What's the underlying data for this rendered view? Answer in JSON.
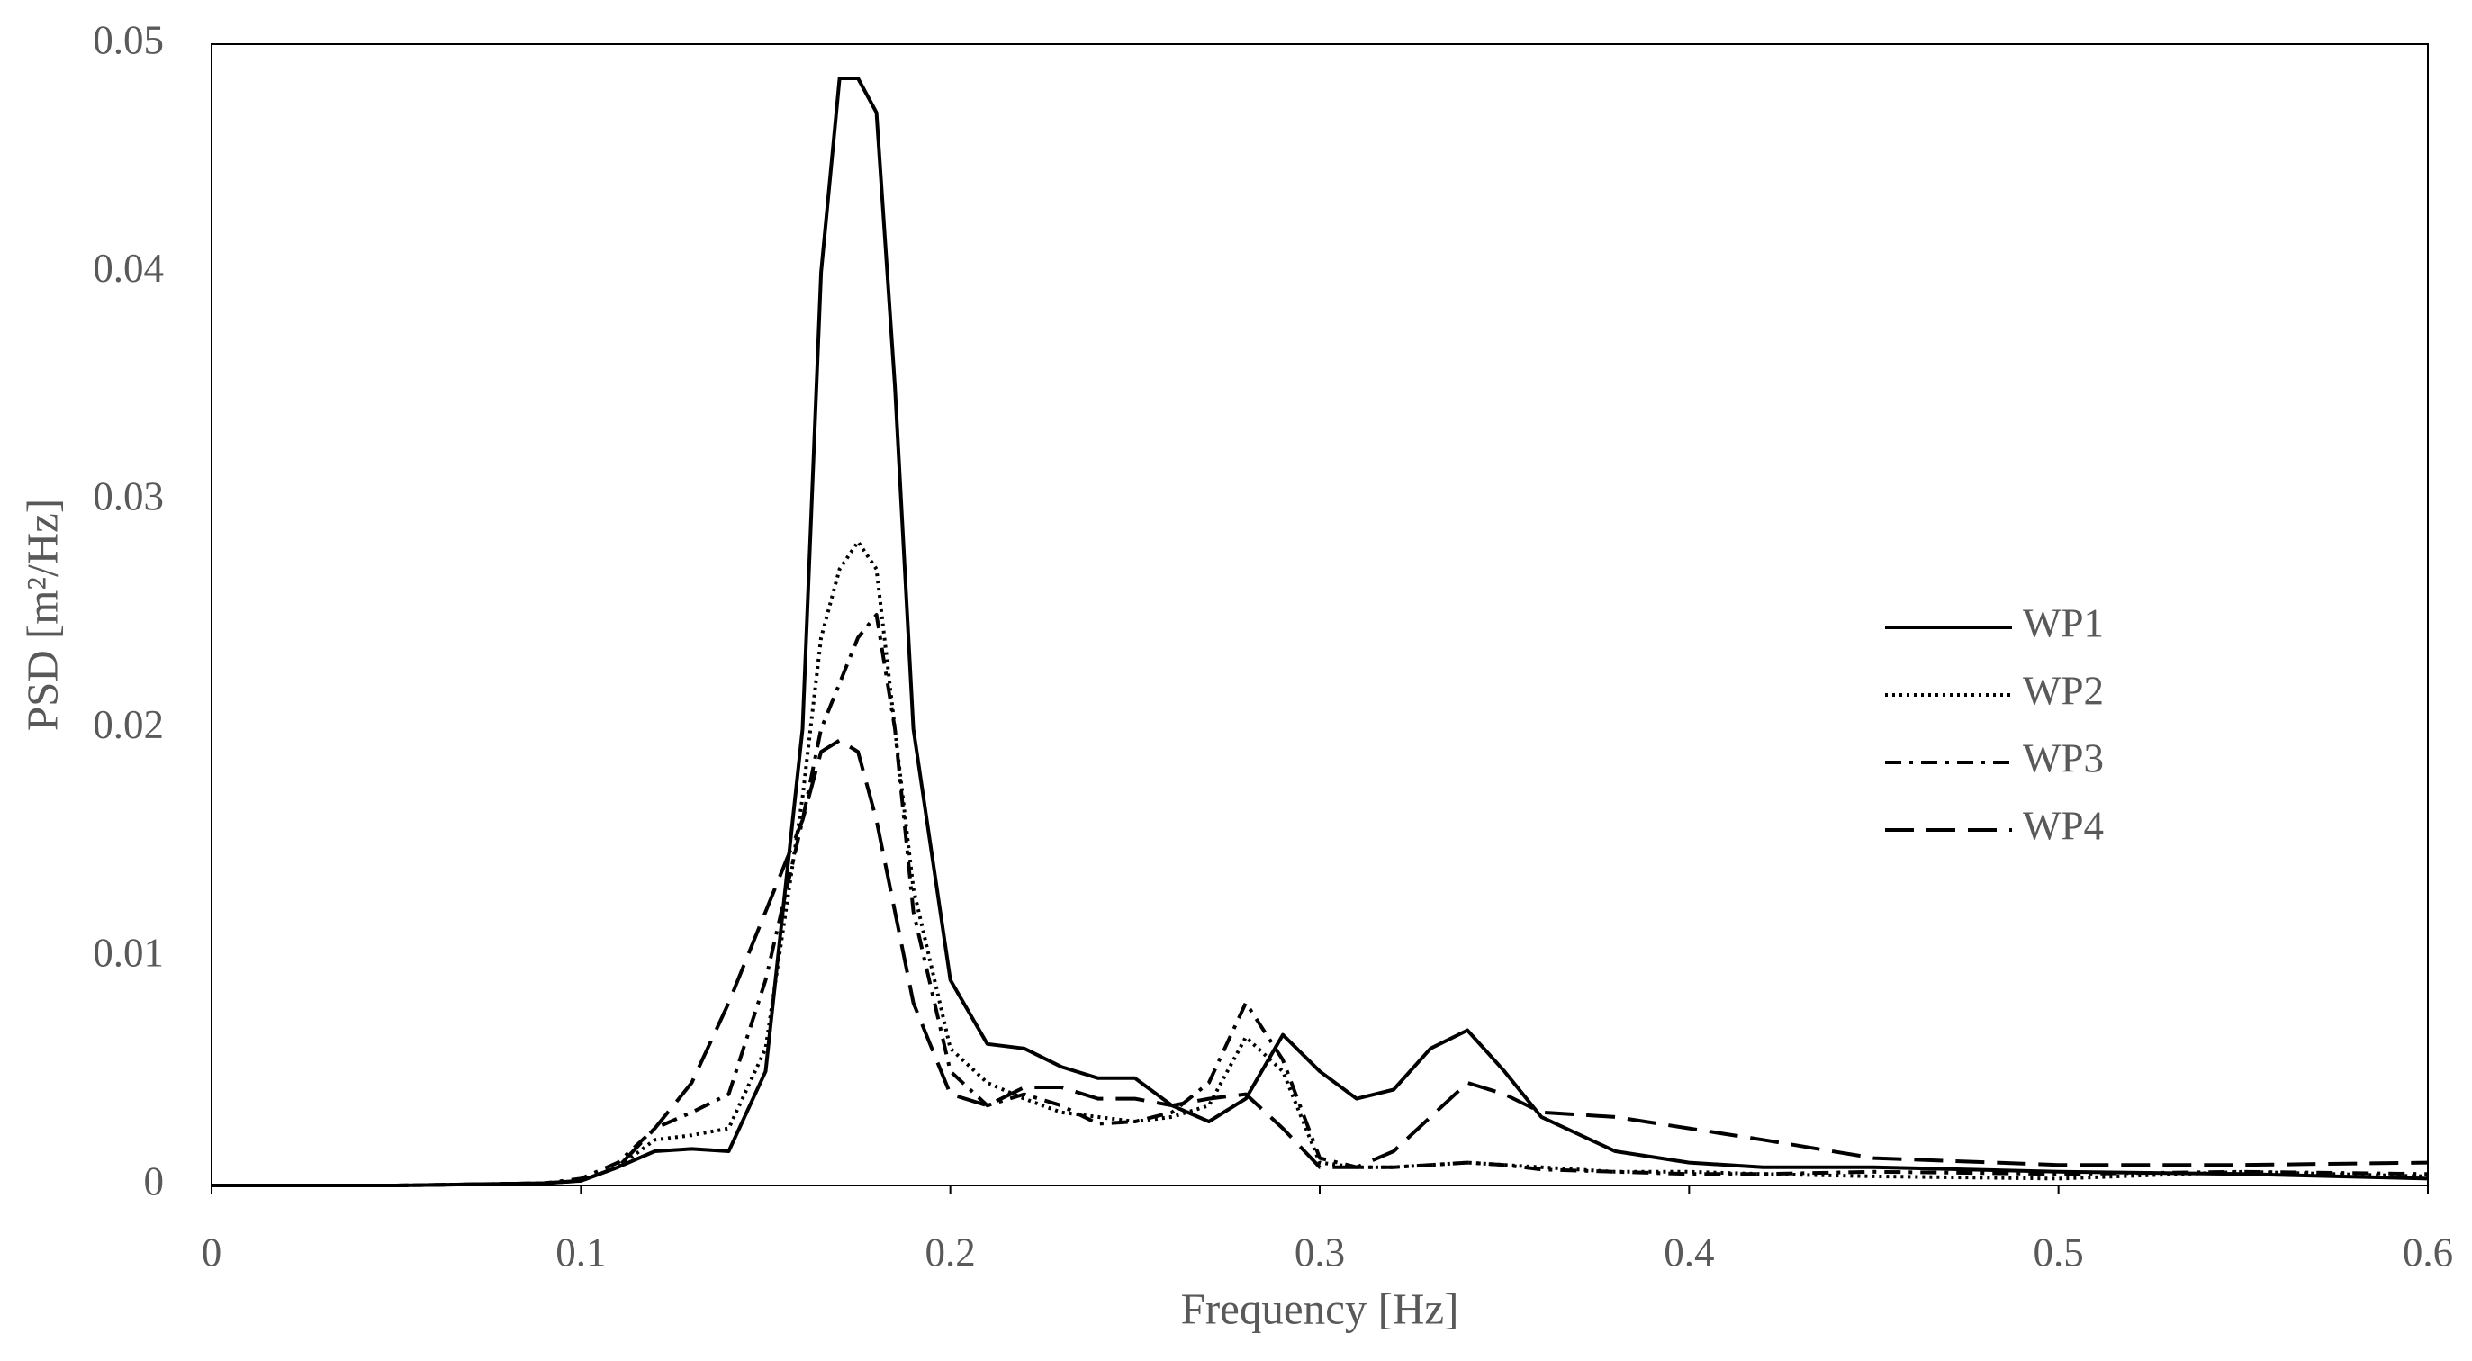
{
  "chart_data": {
    "type": "line",
    "x_label": "Frequency [Hz]",
    "y_label": "PSD [m²/Hz]",
    "x": [
      0,
      0.05,
      0.09,
      0.1,
      0.11,
      0.12,
      0.13,
      0.14,
      0.15,
      0.16,
      0.165,
      0.17,
      0.175,
      0.18,
      0.185,
      0.19,
      0.2,
      0.21,
      0.22,
      0.23,
      0.24,
      0.25,
      0.26,
      0.27,
      0.28,
      0.29,
      0.3,
      0.31,
      0.32,
      0.33,
      0.34,
      0.35,
      0.36,
      0.38,
      0.4,
      0.42,
      0.45,
      0.5,
      0.55,
      0.6
    ],
    "series": [
      {
        "name": "WP1",
        "color": "#000000",
        "dash": "solid",
        "values": [
          0,
          0,
          0.0001,
          0.0002,
          0.0008,
          0.0015,
          0.0016,
          0.0015,
          0.005,
          0.02,
          0.04,
          0.0485,
          0.0485,
          0.047,
          0.035,
          0.02,
          0.009,
          0.0062,
          0.006,
          0.0052,
          0.0047,
          0.0047,
          0.0035,
          0.0028,
          0.0038,
          0.0066,
          0.005,
          0.0038,
          0.0042,
          0.006,
          0.0068,
          0.005,
          0.003,
          0.0015,
          0.001,
          0.0008,
          0.0008,
          0.0006,
          0.0005,
          0.0003
        ]
      },
      {
        "name": "WP2",
        "color": "#000000",
        "dash": "dotted",
        "values": [
          0,
          0,
          0.0001,
          0.0002,
          0.0008,
          0.002,
          0.0022,
          0.0025,
          0.006,
          0.017,
          0.024,
          0.027,
          0.0282,
          0.027,
          0.02,
          0.013,
          0.006,
          0.0045,
          0.0038,
          0.0032,
          0.003,
          0.0028,
          0.003,
          0.0035,
          0.0065,
          0.005,
          0.001,
          0.0008,
          0.0008,
          0.0009,
          0.001,
          0.0009,
          0.0008,
          0.0006,
          0.0006,
          0.0005,
          0.0004,
          0.0003,
          0.0006,
          0.0004
        ]
      },
      {
        "name": "WP3",
        "color": "#000000",
        "dash": "dashdot",
        "values": [
          0,
          0,
          0.0001,
          0.0003,
          0.001,
          0.0025,
          0.0032,
          0.004,
          0.009,
          0.016,
          0.02,
          0.022,
          0.024,
          0.025,
          0.02,
          0.012,
          0.005,
          0.0035,
          0.004,
          0.0035,
          0.0027,
          0.0028,
          0.0032,
          0.0045,
          0.008,
          0.0055,
          0.0012,
          0.0008,
          0.0008,
          0.0009,
          0.001,
          0.0009,
          0.0007,
          0.0006,
          0.0005,
          0.0005,
          0.0006,
          0.0005,
          0.0006,
          0.0005
        ]
      },
      {
        "name": "WP4",
        "color": "#000000",
        "dash": "dashed",
        "values": [
          0,
          0,
          0.0001,
          0.0002,
          0.0008,
          0.0025,
          0.0045,
          0.008,
          0.012,
          0.016,
          0.019,
          0.0195,
          0.019,
          0.016,
          0.012,
          0.008,
          0.004,
          0.0035,
          0.0043,
          0.0043,
          0.0038,
          0.0038,
          0.0035,
          0.0038,
          0.004,
          0.0025,
          0.0008,
          0.0008,
          0.0015,
          0.003,
          0.0045,
          0.004,
          0.0032,
          0.003,
          0.0025,
          0.002,
          0.0012,
          0.0009,
          0.0009,
          0.001
        ]
      }
    ],
    "xlim": [
      0,
      0.6
    ],
    "xticks": [
      0,
      0.1,
      0.2,
      0.3,
      0.4,
      0.5,
      0.6
    ],
    "ylim": [
      0,
      0.05
    ],
    "yticks": [
      0,
      0.01,
      0.02,
      0.03,
      0.04,
      0.05
    ],
    "grid": false,
    "legend": "right"
  }
}
